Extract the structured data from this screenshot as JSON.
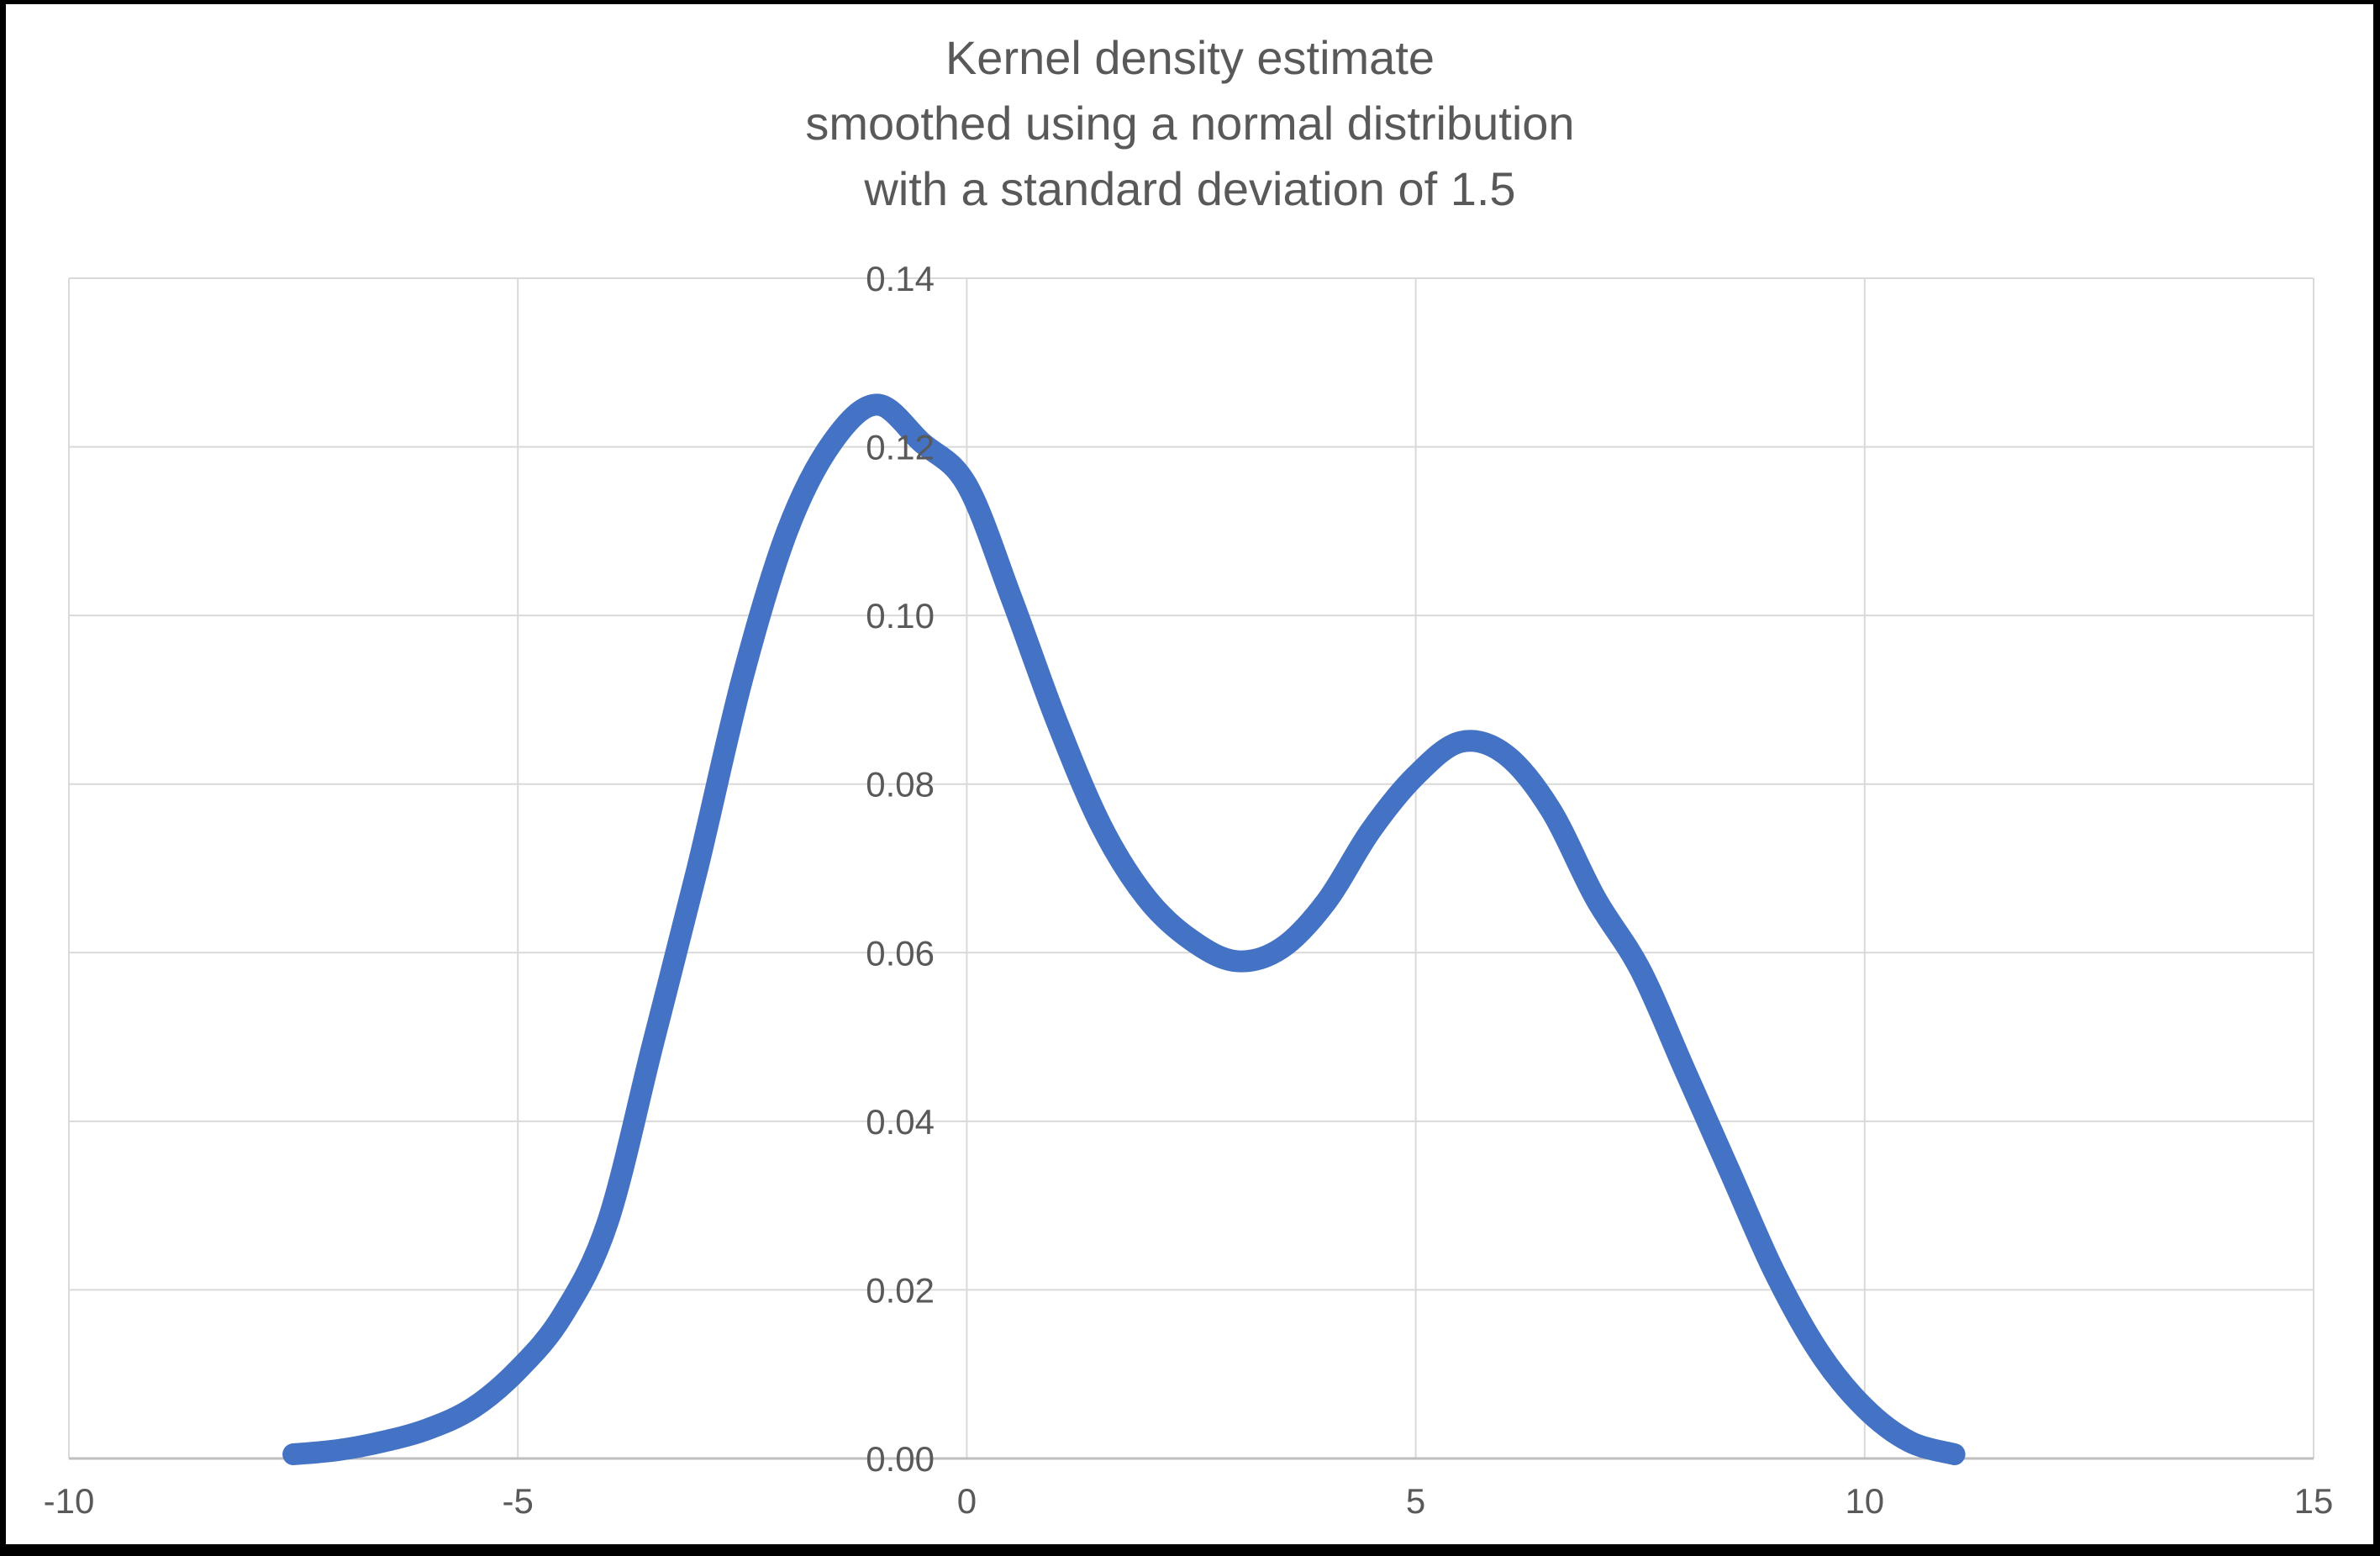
{
  "title": {
    "lines": [
      "Kernel density estimate",
      "smoothed using a normal distribution",
      "with a standard deviation of 1.5"
    ]
  },
  "chart_data": {
    "type": "line",
    "title": "Kernel density estimate smoothed using a normal distribution with a standard deviation of 1.5",
    "xlabel": "",
    "ylabel": "",
    "xlim": [
      -10,
      15
    ],
    "ylim": [
      0,
      0.14
    ],
    "grid": true,
    "legend": "none",
    "line_color": "#4472C4",
    "line_width": 26,
    "gridline_color": "#D9D9D9",
    "axis_line_color": "#BFBFBF",
    "tick_label_color": "#595959",
    "title_color": "#595959",
    "background": "#FFFFFF",
    "frame_color": "#000000",
    "x_ticks": [
      {
        "value": -10,
        "label": "-10"
      },
      {
        "value": -5,
        "label": "-5"
      },
      {
        "value": 0,
        "label": "0"
      },
      {
        "value": 5,
        "label": "5"
      },
      {
        "value": 10,
        "label": "10"
      },
      {
        "value": 15,
        "label": "15"
      }
    ],
    "y_ticks": [
      {
        "value": 0.0,
        "label": "0.00"
      },
      {
        "value": 0.02,
        "label": "0.02"
      },
      {
        "value": 0.04,
        "label": "0.04"
      },
      {
        "value": 0.06,
        "label": "0.06"
      },
      {
        "value": 0.08,
        "label": "0.08"
      },
      {
        "value": 0.1,
        "label": "0.10"
      },
      {
        "value": 0.12,
        "label": "0.12"
      },
      {
        "value": 0.14,
        "label": "0.14"
      }
    ],
    "series": [
      {
        "name": "kde-curve",
        "points": [
          [
            -7.5,
            0.0005
          ],
          [
            -7.0,
            0.001
          ],
          [
            -6.5,
            0.002
          ],
          [
            -6.0,
            0.0035
          ],
          [
            -5.5,
            0.006
          ],
          [
            -5.0,
            0.0105
          ],
          [
            -4.5,
            0.017
          ],
          [
            -4.0,
            0.028
          ],
          [
            -3.5,
            0.049
          ],
          [
            -3.0,
            0.07
          ],
          [
            -2.5,
            0.0925
          ],
          [
            -2.0,
            0.11
          ],
          [
            -1.5,
            0.1205
          ],
          [
            -1.0,
            0.125
          ],
          [
            -0.5,
            0.1205
          ],
          [
            0.0,
            0.1155
          ],
          [
            0.5,
            0.102
          ],
          [
            1.0,
            0.0875
          ],
          [
            1.5,
            0.075
          ],
          [
            2.0,
            0.0665
          ],
          [
            2.5,
            0.0615
          ],
          [
            3.0,
            0.059
          ],
          [
            3.5,
            0.0605
          ],
          [
            4.0,
            0.066
          ],
          [
            4.5,
            0.0745
          ],
          [
            5.0,
            0.081
          ],
          [
            5.5,
            0.085
          ],
          [
            6.0,
            0.0835
          ],
          [
            6.5,
            0.077
          ],
          [
            7.0,
            0.0665
          ],
          [
            7.5,
            0.058
          ],
          [
            8.0,
            0.046
          ],
          [
            8.5,
            0.034
          ],
          [
            9.0,
            0.022
          ],
          [
            9.5,
            0.0125
          ],
          [
            10.0,
            0.006
          ],
          [
            10.5,
            0.002
          ],
          [
            11.0,
            0.0005
          ]
        ]
      }
    ]
  }
}
